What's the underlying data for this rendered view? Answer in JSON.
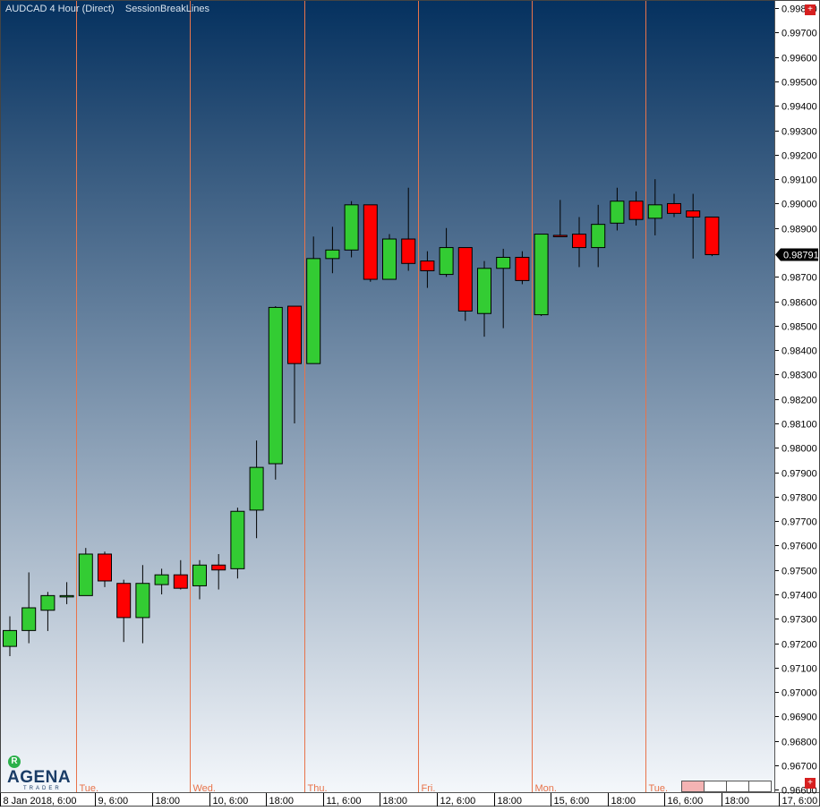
{
  "title": "AUDCAD 4 Hour (Direct)    SessionBreakLines",
  "colors": {
    "bg_top": "#05315f",
    "bg_bottom": "#f4f7fb",
    "up": "#33cc33",
    "down": "#ff0000",
    "session_line": "#e8734a",
    "price_tag_bg": "#000000"
  },
  "current_price": "0.98791",
  "logo": {
    "badge": "R",
    "word": "AGENA",
    "sub": "TRADER"
  },
  "chart_data": {
    "type": "candlestick",
    "ylim": [
      0.9659,
      0.9983
    ],
    "y_ticks": [
      "0.99800",
      "0.99700",
      "0.99600",
      "0.99500",
      "0.99400",
      "0.99300",
      "0.99200",
      "0.99100",
      "0.99000",
      "0.98900",
      "0.98700",
      "0.98600",
      "0.98500",
      "0.98400",
      "0.98300",
      "0.98200",
      "0.98100",
      "0.98000",
      "0.97900",
      "0.97800",
      "0.97700",
      "0.97600",
      "0.97500",
      "0.97400",
      "0.97300",
      "0.97200",
      "0.97100",
      "0.97000",
      "0.96900",
      "0.96800",
      "0.96700",
      "0.96600"
    ],
    "x_labels": [
      {
        "label": "8 Jan 2018, 6:00",
        "index": 0
      },
      {
        "label": "9, 6:00",
        "index": 5
      },
      {
        "label": "18:00",
        "index": 8
      },
      {
        "label": "10, 6:00",
        "index": 11
      },
      {
        "label": "18:00",
        "index": 14
      },
      {
        "label": "11, 6:00",
        "index": 17
      },
      {
        "label": "18:00",
        "index": 20
      },
      {
        "label": "12, 6:00",
        "index": 23
      },
      {
        "label": "18:00",
        "index": 26
      },
      {
        "label": "15, 6:00",
        "index": 29
      },
      {
        "label": "18:00",
        "index": 32
      },
      {
        "label": "16, 6:00",
        "index": 35
      },
      {
        "label": "18:00",
        "index": 38
      },
      {
        "label": "17, 6:00",
        "index": 41
      }
    ],
    "sessions": [
      {
        "label": "Tue.",
        "after_index": 3.5
      },
      {
        "label": "Wed.",
        "after_index": 9.5
      },
      {
        "label": "Thu.",
        "after_index": 15.5
      },
      {
        "label": "Fri.",
        "after_index": 21.5
      },
      {
        "label": "Mon.",
        "after_index": 27.5
      },
      {
        "label": "Tue.",
        "after_index": 33.5
      }
    ],
    "candles": [
      {
        "o": 0.97187,
        "h": 0.9731,
        "l": 0.97147,
        "c": 0.97252
      },
      {
        "o": 0.97252,
        "h": 0.9749,
        "l": 0.972,
        "c": 0.97345
      },
      {
        "o": 0.97335,
        "h": 0.9741,
        "l": 0.9725,
        "c": 0.97395
      },
      {
        "o": 0.97395,
        "h": 0.9745,
        "l": 0.9736,
        "c": 0.97395
      },
      {
        "o": 0.97395,
        "h": 0.9759,
        "l": 0.97395,
        "c": 0.97565
      },
      {
        "o": 0.97565,
        "h": 0.97575,
        "l": 0.9743,
        "c": 0.97455
      },
      {
        "o": 0.97445,
        "h": 0.9746,
        "l": 0.97205,
        "c": 0.97305
      },
      {
        "o": 0.97305,
        "h": 0.9752,
        "l": 0.972,
        "c": 0.97445
      },
      {
        "o": 0.9744,
        "h": 0.97505,
        "l": 0.974,
        "c": 0.9748
      },
      {
        "o": 0.9748,
        "h": 0.9754,
        "l": 0.9742,
        "c": 0.97425
      },
      {
        "o": 0.97435,
        "h": 0.9754,
        "l": 0.9738,
        "c": 0.9752
      },
      {
        "o": 0.9752,
        "h": 0.97565,
        "l": 0.9742,
        "c": 0.975
      },
      {
        "o": 0.97505,
        "h": 0.97755,
        "l": 0.97465,
        "c": 0.9774
      },
      {
        "o": 0.97745,
        "h": 0.9803,
        "l": 0.9763,
        "c": 0.9792
      },
      {
        "o": 0.97935,
        "h": 0.9858,
        "l": 0.9787,
        "c": 0.98575
      },
      {
        "o": 0.9858,
        "h": 0.9858,
        "l": 0.981,
        "c": 0.98345
      },
      {
        "o": 0.98345,
        "h": 0.98865,
        "l": 0.98345,
        "c": 0.98775
      },
      {
        "o": 0.98775,
        "h": 0.98905,
        "l": 0.98715,
        "c": 0.9881
      },
      {
        "o": 0.9881,
        "h": 0.9901,
        "l": 0.9878,
        "c": 0.98995
      },
      {
        "o": 0.98995,
        "h": 0.98995,
        "l": 0.9868,
        "c": 0.9869
      },
      {
        "o": 0.9869,
        "h": 0.98875,
        "l": 0.9869,
        "c": 0.98855
      },
      {
        "o": 0.98855,
        "h": 0.99065,
        "l": 0.98725,
        "c": 0.98755
      },
      {
        "o": 0.98765,
        "h": 0.98805,
        "l": 0.98655,
        "c": 0.98725
      },
      {
        "o": 0.9871,
        "h": 0.989,
        "l": 0.987,
        "c": 0.9882
      },
      {
        "o": 0.9882,
        "h": 0.9882,
        "l": 0.9852,
        "c": 0.9856
      },
      {
        "o": 0.9855,
        "h": 0.98765,
        "l": 0.98455,
        "c": 0.98735
      },
      {
        "o": 0.98735,
        "h": 0.98815,
        "l": 0.9849,
        "c": 0.9878
      },
      {
        "o": 0.9878,
        "h": 0.98805,
        "l": 0.9867,
        "c": 0.98685
      },
      {
        "o": 0.98545,
        "h": 0.98875,
        "l": 0.9854,
        "c": 0.98875
      },
      {
        "o": 0.9887,
        "h": 0.99015,
        "l": 0.9887,
        "c": 0.98865
      },
      {
        "o": 0.98875,
        "h": 0.98945,
        "l": 0.9874,
        "c": 0.9882
      },
      {
        "o": 0.9882,
        "h": 0.98995,
        "l": 0.9874,
        "c": 0.98915
      },
      {
        "o": 0.9892,
        "h": 0.99065,
        "l": 0.9889,
        "c": 0.9901
      },
      {
        "o": 0.9901,
        "h": 0.9905,
        "l": 0.9891,
        "c": 0.98935
      },
      {
        "o": 0.9894,
        "h": 0.991,
        "l": 0.9887,
        "c": 0.98995
      },
      {
        "o": 0.99,
        "h": 0.9904,
        "l": 0.98945,
        "c": 0.9896
      },
      {
        "o": 0.9897,
        "h": 0.9904,
        "l": 0.98775,
        "c": 0.98945
      },
      {
        "o": 0.98945,
        "h": 0.98945,
        "l": 0.98785,
        "c": 0.98791
      }
    ]
  }
}
